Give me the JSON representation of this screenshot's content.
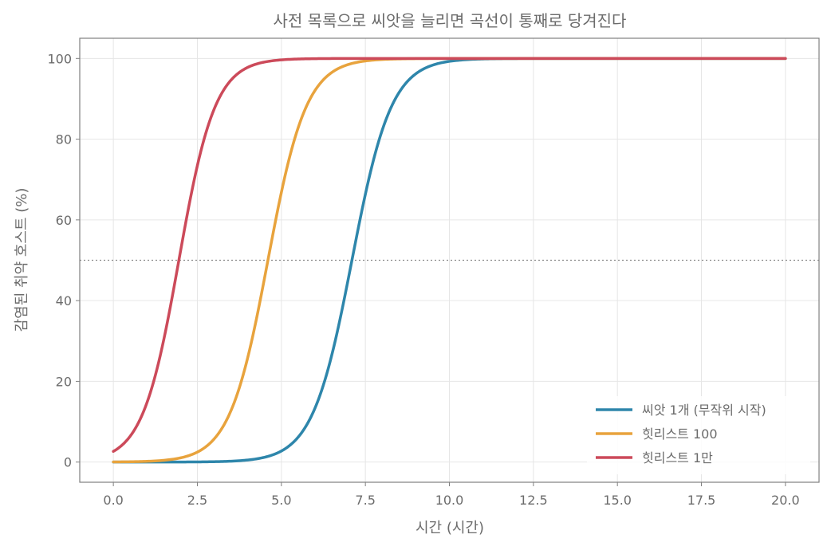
{
  "chart_data": {
    "type": "line",
    "title": "사전 목록으로 씨앗을 늘리면 곡선이 통째로 당겨진다",
    "xlabel": "시간 (시간)",
    "ylabel": "감염된 취약 호스트 (%)",
    "xlim": [
      -1,
      21
    ],
    "ylim": [
      -5,
      105
    ],
    "xticks": [
      0,
      2.5,
      5,
      7.5,
      10,
      12.5,
      15,
      17.5,
      20
    ],
    "xtick_labels": [
      "0.0",
      "2.5",
      "5.0",
      "7.5",
      "10.0",
      "12.5",
      "15.0",
      "17.5",
      "20.0"
    ],
    "yticks": [
      0,
      20,
      40,
      60,
      80,
      100
    ],
    "ytick_labels": [
      "0",
      "20",
      "40",
      "60",
      "80",
      "100"
    ],
    "grid": true,
    "legend_position": "bottom-right",
    "reference_line": {
      "y": 50,
      "style": "dotted"
    },
    "x_range": [
      0,
      20
    ],
    "series": [
      {
        "name": "씨앗 1개 (무작위 시작)",
        "color": "#2e86ab",
        "midpoint_x": 7.1,
        "rate": 1.7,
        "start_y": 0.0,
        "end_y": 100
      },
      {
        "name": "힛리스트 100",
        "color": "#e8a33d",
        "midpoint_x": 4.6,
        "rate": 1.75,
        "start_y": 0.03,
        "end_y": 100
      },
      {
        "name": "힛리스트 1만",
        "color": "#cc4a5a",
        "midpoint_x": 1.95,
        "rate": 1.85,
        "start_y": 2.6,
        "end_y": 100
      }
    ]
  }
}
